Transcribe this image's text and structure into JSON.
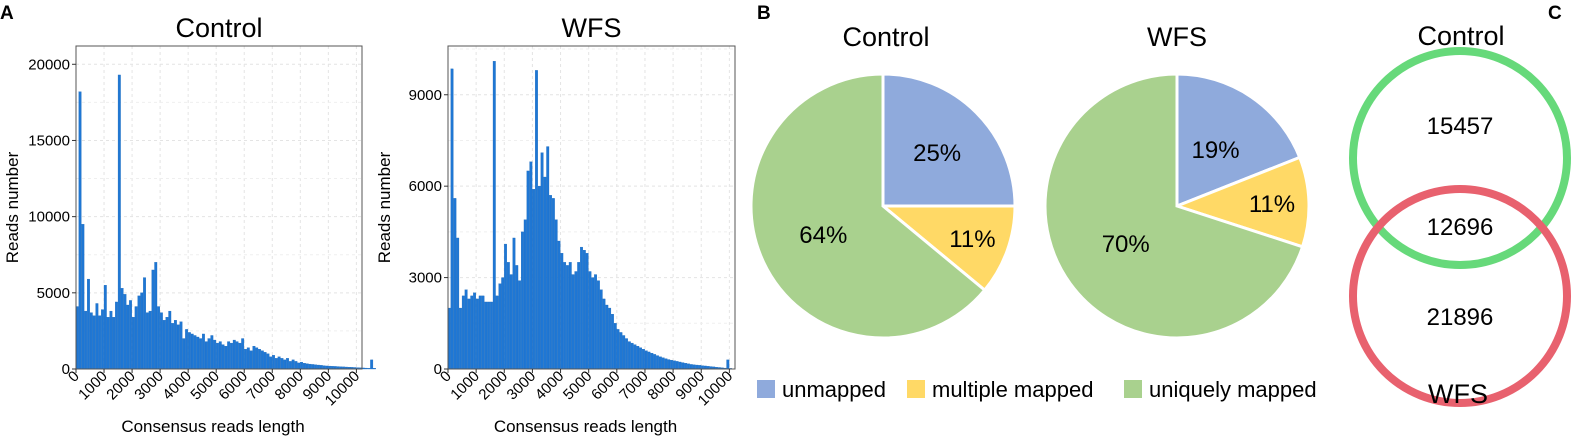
{
  "panel_labels": {
    "a": "A",
    "b": "B",
    "c": "C"
  },
  "chart_data": [
    {
      "type": "bar",
      "panel": "A",
      "title": "Control",
      "xlabel": "Consensus reads length",
      "ylabel": "Reads number",
      "xlim": [
        0,
        10200
      ],
      "ylim": [
        0,
        21200
      ],
      "bin_width": 100,
      "xticks": [
        0,
        1000,
        2000,
        3000,
        4000,
        5000,
        6000,
        7000,
        8000,
        9000,
        10000
      ],
      "yticks": [
        0,
        5000,
        10000,
        15000,
        20000
      ],
      "grid": true,
      "bar_color": "#1f77d4",
      "values": [
        4100,
        18200,
        9500,
        3800,
        5900,
        3700,
        3500,
        4300,
        3500,
        3900,
        5500,
        3400,
        3800,
        3400,
        4400,
        19300,
        5300,
        4900,
        4200,
        4500,
        3400,
        4100,
        4800,
        5000,
        6000,
        3700,
        3800,
        6500,
        7000,
        4100,
        3700,
        3200,
        3400,
        3800,
        3000,
        3200,
        2900,
        3100,
        2000,
        2600,
        2400,
        2300,
        2200,
        2100,
        2000,
        2300,
        1800,
        2000,
        2200,
        1900,
        1700,
        1800,
        1600,
        1500,
        1800,
        1700,
        1900,
        1800,
        1700,
        2000,
        1300,
        1400,
        1200,
        1500,
        1400,
        1300,
        1200,
        1100,
        1000,
        800,
        900,
        700,
        800,
        700,
        600,
        700,
        500,
        600,
        500,
        400,
        450,
        380,
        350,
        320,
        300,
        280,
        260,
        240,
        220,
        200,
        190,
        180,
        170,
        160,
        150,
        140,
        130,
        120,
        110,
        100,
        90,
        80,
        70,
        60,
        50,
        600,
        50
      ]
    },
    {
      "type": "bar",
      "panel": "A",
      "title": "WFS",
      "xlabel": "Consensus reads length",
      "ylabel": "Reads number",
      "xlim": [
        0,
        10200
      ],
      "ylim": [
        0,
        10600
      ],
      "bin_width": 100,
      "xticks": [
        0,
        1000,
        2000,
        3000,
        4000,
        5000,
        6000,
        7000,
        8000,
        9000,
        10000
      ],
      "yticks": [
        0,
        3000,
        6000,
        9000
      ],
      "grid": true,
      "bar_color": "#1f77d4",
      "values": [
        2000,
        9850,
        5600,
        4300,
        2000,
        2400,
        2600,
        2300,
        2400,
        2500,
        2300,
        2400,
        2400,
        2200,
        2200,
        2200,
        10100,
        2400,
        2800,
        3000,
        4100,
        3500,
        3100,
        4300,
        3400,
        2900,
        4500,
        4900,
        6500,
        6800,
        5900,
        9800,
        6000,
        7100,
        6300,
        7300,
        5700,
        5600,
        4900,
        4200,
        3800,
        3500,
        3400,
        3500,
        3100,
        3200,
        3500,
        4000,
        3900,
        3800,
        3200,
        3000,
        3100,
        2900,
        2600,
        2300,
        2100,
        2000,
        1800,
        1500,
        1300,
        1200,
        1100,
        1000,
        900,
        850,
        800,
        750,
        700,
        650,
        600,
        560,
        520,
        480,
        440,
        400,
        370,
        340,
        310,
        290,
        270,
        250,
        230,
        210,
        190,
        170,
        150,
        140,
        130,
        120,
        110,
        100,
        90,
        80,
        70,
        60,
        50,
        40,
        30,
        300,
        20
      ]
    },
    {
      "type": "pie",
      "panel": "B",
      "title": "Control",
      "labels": [
        "unmapped",
        "multiple mapped",
        "uniquely mapped"
      ],
      "values": [
        25,
        11,
        64
      ],
      "value_labels": [
        "25%",
        "11%",
        "64%"
      ],
      "colors": [
        "#8faadc",
        "#ffd966",
        "#a9d18e"
      ]
    },
    {
      "type": "pie",
      "panel": "B",
      "title": "WFS",
      "labels": [
        "unmapped",
        "multiple mapped",
        "uniquely mapped"
      ],
      "values": [
        19,
        11,
        70
      ],
      "value_labels": [
        "19%",
        "11%",
        "70%"
      ],
      "colors": [
        "#8faadc",
        "#ffd966",
        "#a9d18e"
      ]
    }
  ],
  "legend": [
    {
      "label": "unmapped",
      "color": "#8faadc"
    },
    {
      "label": "multiple mapped",
      "color": "#ffd966"
    },
    {
      "label": "uniquely mapped",
      "color": "#a9d18e"
    }
  ],
  "venn": {
    "top_label": "Control",
    "bottom_label": "WFS",
    "top_only": "15457",
    "shared": "12696",
    "bottom_only": "21896",
    "top_color": "#66d97a",
    "bottom_color": "#e8616e"
  }
}
